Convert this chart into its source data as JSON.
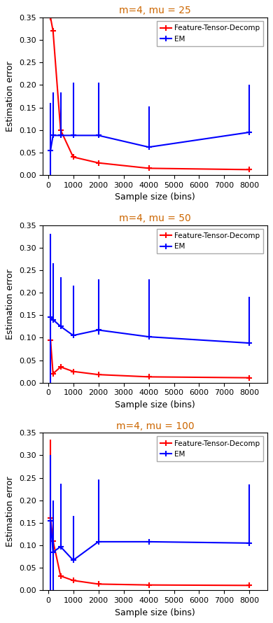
{
  "titles": [
    "m=4, mu = 25",
    "m=4, mu = 50",
    "m=4, mu = 100"
  ],
  "title_color": "#cc6600",
  "xlabel": "Sample size (bins)",
  "ylabel": "Estimation error",
  "xlim": [
    -200,
    8700
  ],
  "ylim": [
    0.0,
    0.35
  ],
  "yticks": [
    0.0,
    0.05,
    0.1,
    0.15,
    0.2,
    0.25,
    0.3,
    0.35
  ],
  "xticks": [
    0,
    1000,
    2000,
    3000,
    4000,
    5000,
    6000,
    7000,
    8000
  ],
  "x": [
    100,
    200,
    500,
    1000,
    2000,
    4000,
    8000
  ],
  "red_label": "Feature-Tensor-Decomp",
  "blue_label": "EM",
  "red_color": "#ff0000",
  "blue_color": "#0000ff",
  "plots": [
    {
      "comment": "mu=25",
      "red_y": [
        0.35,
        0.32,
        0.1,
        0.04,
        0.027,
        0.015,
        0.012
      ],
      "red_yerr_lo": [
        0.0,
        0.0,
        0.0,
        0.0,
        0.0,
        0.0,
        0.0
      ],
      "red_yerr_hi": [
        0.0,
        0.0,
        0.0,
        0.0,
        0.0,
        0.0,
        0.0
      ],
      "blue_y": [
        0.055,
        0.088,
        0.088,
        0.088,
        0.088,
        0.062,
        0.095
      ],
      "blue_yerr_lo": [
        0.055,
        0.0,
        0.0,
        0.0,
        0.0,
        0.0,
        0.0
      ],
      "blue_yerr_hi": [
        0.105,
        0.095,
        0.095,
        0.118,
        0.118,
        0.09,
        0.105
      ]
    },
    {
      "comment": "mu=50",
      "red_y": [
        0.095,
        0.02,
        0.035,
        0.025,
        0.018,
        0.013,
        0.011
      ],
      "red_yerr_lo": [
        0.0,
        0.0,
        0.0,
        0.0,
        0.0,
        0.0,
        0.0
      ],
      "red_yerr_hi": [
        0.0,
        0.0,
        0.0,
        0.0,
        0.0,
        0.0,
        0.0
      ],
      "blue_y": [
        0.145,
        0.14,
        0.125,
        0.105,
        0.117,
        0.102,
        0.088
      ],
      "blue_yerr_lo": [
        0.145,
        0.0,
        0.0,
        0.0,
        0.01,
        0.0,
        0.0
      ],
      "blue_yerr_hi": [
        0.185,
        0.125,
        0.11,
        0.11,
        0.113,
        0.128,
        0.103
      ]
    },
    {
      "comment": "mu=100",
      "red_y": [
        0.16,
        0.11,
        0.032,
        0.022,
        0.014,
        0.012,
        0.011
      ],
      "red_yerr_lo": [
        0.0,
        0.0,
        0.0,
        0.0,
        0.0,
        0.0,
        0.0
      ],
      "red_yerr_hi": [
        0.175,
        0.0,
        0.0,
        0.0,
        0.0,
        0.0,
        0.0
      ],
      "blue_y": [
        0.155,
        0.085,
        0.097,
        0.067,
        0.108,
        0.108,
        0.105
      ],
      "blue_yerr_lo": [
        0.155,
        0.085,
        0.0,
        0.0,
        0.0,
        0.0,
        0.0
      ],
      "blue_yerr_hi": [
        0.145,
        0.115,
        0.14,
        0.098,
        0.138,
        0.0,
        0.13
      ]
    }
  ]
}
